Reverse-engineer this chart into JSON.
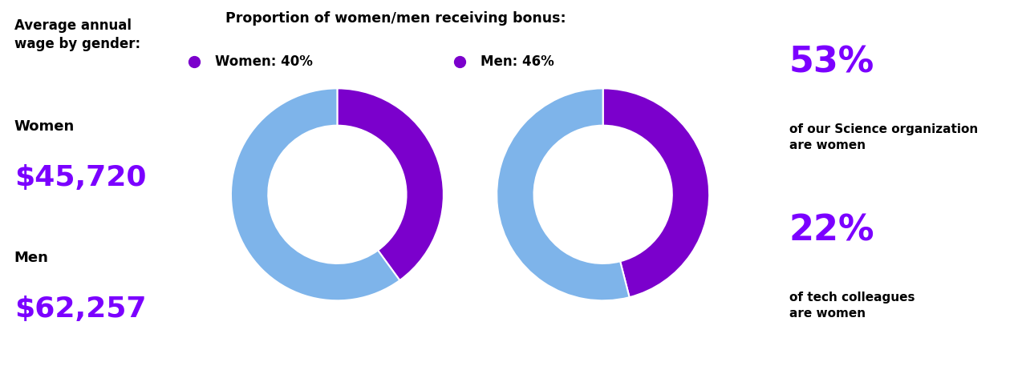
{
  "title_left": "Average annual\nwage by gender:",
  "women_label": "Women",
  "women_wage": "$45,720",
  "men_label": "Men",
  "men_wage": "$62,257",
  "donut_title": "Proportion of women/men receiving bonus:",
  "women_bonus_pct": 40,
  "men_bonus_pct": 46,
  "women_legend": "Women: 40%",
  "men_legend": "Men: 46%",
  "stat1_pct": "53%",
  "stat1_desc": "of our Science organization\nare women",
  "stat2_pct": "22%",
  "stat2_desc": "of tech colleagues\nare women",
  "bg_color": "#FFFFFF",
  "text_black": "#000000",
  "purple_color": "#7B00FF",
  "donut_purple": "#7B00CC",
  "donut_blue": "#7EB4EA"
}
